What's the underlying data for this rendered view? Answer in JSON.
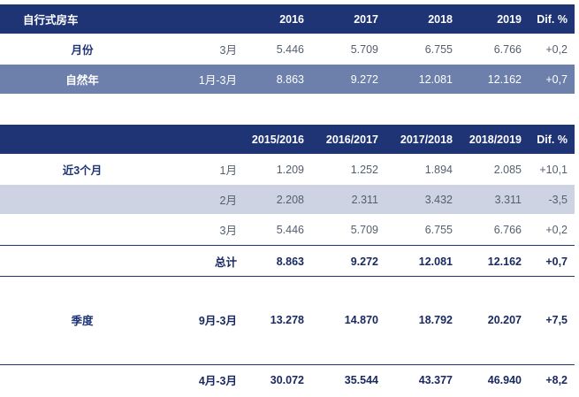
{
  "t1": {
    "title": "自行式房车",
    "years": [
      "2016",
      "2017",
      "2018",
      "2019",
      "Dif. %"
    ],
    "rows": [
      {
        "label": "月份",
        "period": "3月",
        "values": [
          "5.446",
          "5.709",
          "6.755",
          "6.766",
          "+0,2"
        ]
      },
      {
        "label": "自然年",
        "period": "1月-3月",
        "values": [
          "8.863",
          "9.272",
          "12.081",
          "12.162",
          "+0,7"
        ]
      }
    ]
  },
  "t2": {
    "years": [
      "2015/2016",
      "2016/2017",
      "2017/2018",
      "2018/2019",
      "Dif. %"
    ],
    "group_label": "近3个月",
    "rows": [
      {
        "period": "1月",
        "values": [
          "1.209",
          "1.252",
          "1.894",
          "2.085",
          "+10,1"
        ]
      },
      {
        "period": "2月",
        "values": [
          "2.208",
          "2.311",
          "3.432",
          "3.311",
          "-3,5"
        ]
      },
      {
        "period": "3月",
        "values": [
          "5.446",
          "5.709",
          "6.755",
          "6.766",
          "+0,2"
        ]
      }
    ],
    "total": {
      "period": "总计",
      "values": [
        "8.863",
        "9.272",
        "12.081",
        "12.162",
        "+0,7"
      ]
    },
    "season_label": "季度",
    "season_rows": [
      {
        "period": "9月-3月",
        "values": [
          "13.278",
          "14.870",
          "18.792",
          "20.207",
          "+7,5"
        ]
      },
      {
        "period": "4月-3月",
        "values": [
          "30.072",
          "35.544",
          "43.377",
          "46.940",
          "+8,2"
        ]
      }
    ]
  }
}
